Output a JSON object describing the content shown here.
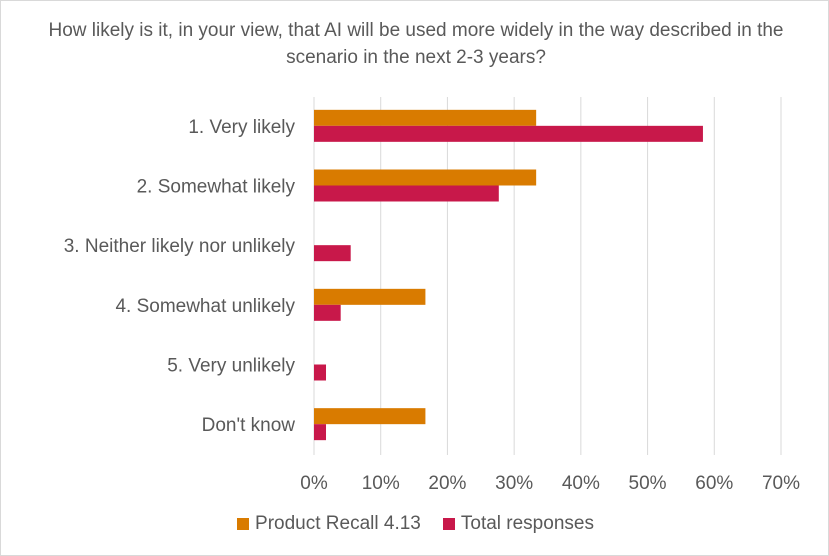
{
  "chart_data": {
    "type": "bar",
    "orientation": "horizontal",
    "title": "How likely is it, in your view, that AI will be used more widely in the way described in the scenario in the next 2-3 years?",
    "categories": [
      "1. Very likely",
      "2. Somewhat likely",
      "3. Neither likely nor unlikely",
      "4. Somewhat unlikely",
      "5. Very unlikely",
      "Don't know"
    ],
    "series": [
      {
        "name": "Product Recall 4.13",
        "color": "#d97b00",
        "values": [
          33.3,
          33.3,
          0,
          16.7,
          0,
          16.7
        ]
      },
      {
        "name": "Total responses",
        "color": "#c8184a",
        "values": [
          58.3,
          27.7,
          5.5,
          4.0,
          1.8,
          1.8
        ]
      }
    ],
    "x_ticks": [
      "0%",
      "10%",
      "20%",
      "30%",
      "40%",
      "50%",
      "60%",
      "70%"
    ],
    "xlim": [
      0,
      70
    ],
    "grid": true,
    "legend_position": "bottom"
  }
}
